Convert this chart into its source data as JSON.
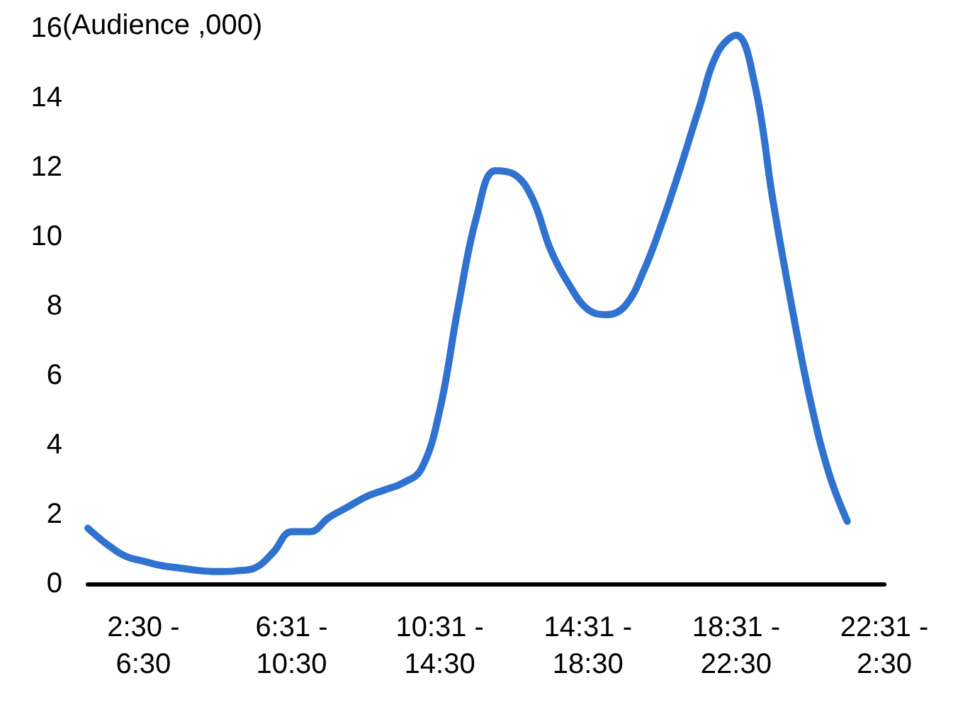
{
  "chart_data": {
    "type": "line",
    "ylabel": "(Audience ,000)",
    "categories": [
      null,
      null,
      null,
      "2:30 -\n6:30",
      null,
      null,
      null,
      null,
      null,
      null,
      null,
      "6:31 -\n10:30",
      null,
      null,
      null,
      null,
      null,
      null,
      null,
      "10:31 -\n14:30",
      null,
      null,
      null,
      null,
      null,
      null,
      null,
      "14:31 -\n18:30",
      null,
      null,
      null,
      null,
      null,
      null,
      null,
      "18:31 -\n22:30",
      null,
      null,
      null,
      null,
      null,
      null,
      null,
      "22:31 -\n2:30"
    ],
    "series": [
      {
        "color": "#2f72d0",
        "values": [
          1.6,
          1.15,
          0.8,
          0.65,
          0.52,
          0.45,
          0.38,
          0.35,
          0.37,
          0.45,
          0.9,
          1.5,
          1.5,
          1.9,
          2.2,
          2.5,
          2.7,
          2.9,
          3.3,
          5.0,
          8.0,
          10.6,
          11.9,
          11.8,
          11.1,
          9.6,
          8.6,
          7.9,
          7.75,
          8.0,
          9.0,
          10.4,
          12.0,
          13.7,
          15.3,
          15.8,
          14.4,
          11.0,
          8.0,
          5.3,
          3.2,
          1.8,
          null,
          null
        ]
      }
    ],
    "ylim": [
      0,
      16
    ],
    "yticks": [
      0,
      2,
      4,
      6,
      8,
      10,
      12,
      14,
      16
    ],
    "grid": false,
    "marker": "none",
    "line_style": "solid"
  }
}
